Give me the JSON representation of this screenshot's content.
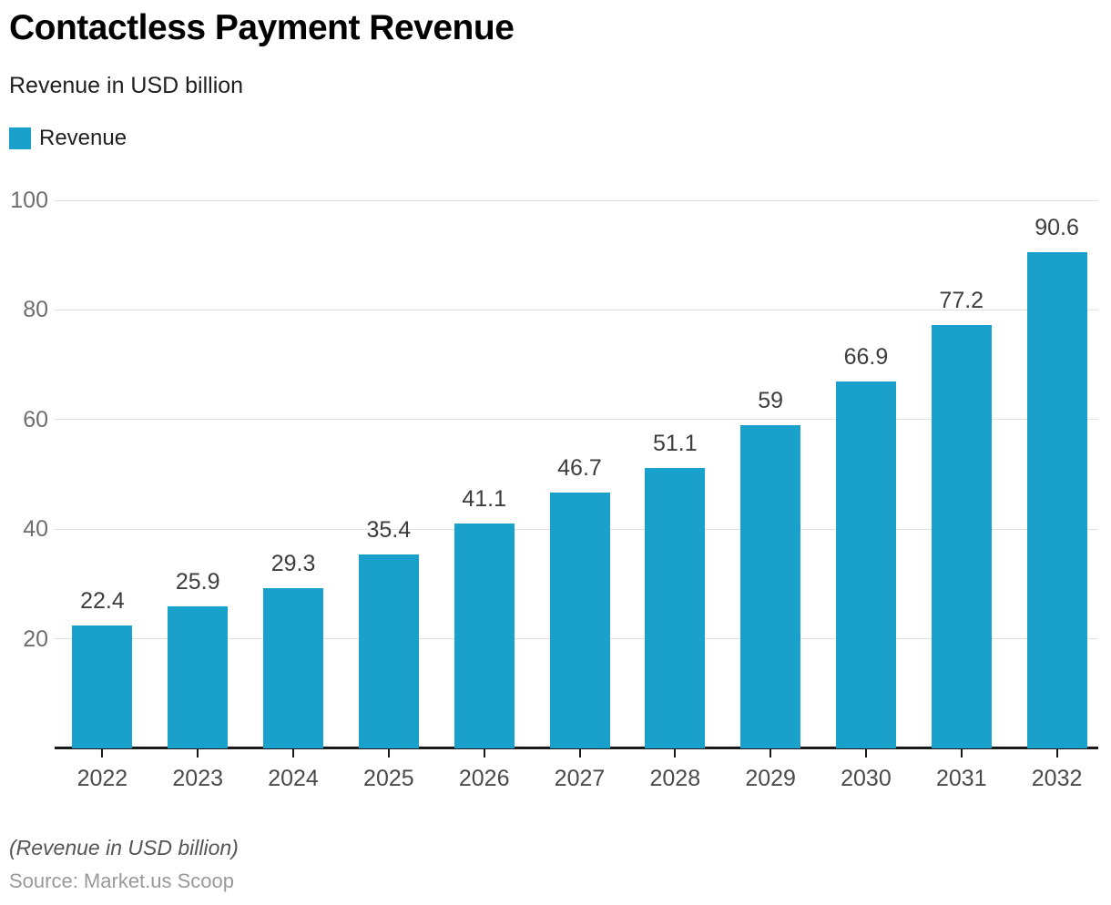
{
  "header": {
    "title": "Contactless Payment Revenue",
    "subtitle": "Revenue in USD billion"
  },
  "legend": {
    "label": "Revenue",
    "color": "#1aa1cb"
  },
  "chart_data": {
    "type": "bar",
    "title": "Contactless Payment Revenue",
    "subtitle": "Revenue in USD billion",
    "series_name": "Revenue",
    "categories": [
      "2022",
      "2023",
      "2024",
      "2025",
      "2026",
      "2027",
      "2028",
      "2029",
      "2030",
      "2031",
      "2032"
    ],
    "values": [
      22.4,
      25.9,
      29.3,
      35.4,
      41.1,
      46.7,
      51.1,
      59,
      66.9,
      77.2,
      90.6
    ],
    "value_labels": [
      "22.4",
      "25.9",
      "29.3",
      "35.4",
      "41.1",
      "46.7",
      "51.1",
      "59",
      "66.9",
      "77.2",
      "90.6"
    ],
    "xlabel": "",
    "ylabel": "",
    "ylim": [
      0,
      100
    ],
    "y_ticks": [
      20,
      40,
      60,
      80,
      100
    ],
    "grid": true,
    "legend_position": "top-left",
    "bar_color": "#1aa1cb",
    "axis_color": "#1a1a1a",
    "gridline_color": "#e0e0e0",
    "tick_color": "#1a1a1a"
  },
  "footer": {
    "note": "(Revenue in USD billion)",
    "source": "Source: Market.us Scoop"
  }
}
